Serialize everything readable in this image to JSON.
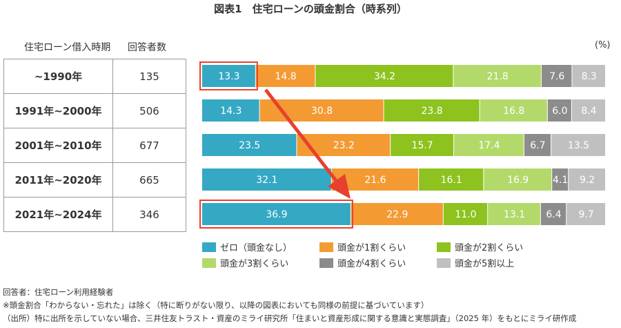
{
  "title": "図表1　住宅ローンの頭金割合（時系列）",
  "table": {
    "col1_header": "住宅ローン借入時期",
    "col2_header": "回答者数",
    "rows": [
      {
        "period": "~1990年",
        "n": "135"
      },
      {
        "period": "1991年~2000年",
        "n": "506"
      },
      {
        "period": "2001年~2010年",
        "n": "677"
      },
      {
        "period": "2011年~2020年",
        "n": "665"
      },
      {
        "period": "2021年~2024年",
        "n": "346"
      }
    ]
  },
  "chart_data": {
    "type": "bar",
    "stacked": true,
    "orientation": "horizontal",
    "unit": "(%)",
    "categories": [
      "~1990年",
      "1991年~2000年",
      "2001年~2010年",
      "2011年~2020年",
      "2021年~2024年"
    ],
    "series": [
      {
        "name": "ゼロ（頭金なし）",
        "color": "#35a8c4",
        "values": [
          13.3,
          14.3,
          23.5,
          32.1,
          36.9
        ]
      },
      {
        "name": "頭金が1割くらい",
        "color": "#f39a33",
        "values": [
          14.8,
          30.8,
          23.2,
          21.6,
          22.9
        ]
      },
      {
        "name": "頭金が2割くらい",
        "color": "#8dc21f",
        "values": [
          34.2,
          23.8,
          15.7,
          16.1,
          11.0
        ]
      },
      {
        "name": "頭金が3割くらい",
        "color": "#b3d96a",
        "values": [
          21.8,
          16.8,
          17.4,
          16.9,
          13.1
        ]
      },
      {
        "name": "頭金が4割くらい",
        "color": "#8c8c8c",
        "values": [
          7.6,
          6.0,
          6.7,
          4.1,
          6.4
        ]
      },
      {
        "name": "頭金が5割以上",
        "color": "#c0c0c0",
        "values": [
          8.3,
          8.4,
          13.5,
          9.2,
          9.7
        ]
      }
    ],
    "highlight_color": "#e8402e"
  },
  "notes": [
    "回答者：住宅ローン利用経験者",
    "※頭金割合「わからない・忘れた」は除く（特に断りがない限り、以降の図表においても同様の前提に基づいています）",
    "（出所）特に出所を示していない場合、三井住友トラスト・資産のミライ研究所「住まいと資産形成に関する意識と実態調査」（2025 年）をもとにミライ研作成"
  ]
}
